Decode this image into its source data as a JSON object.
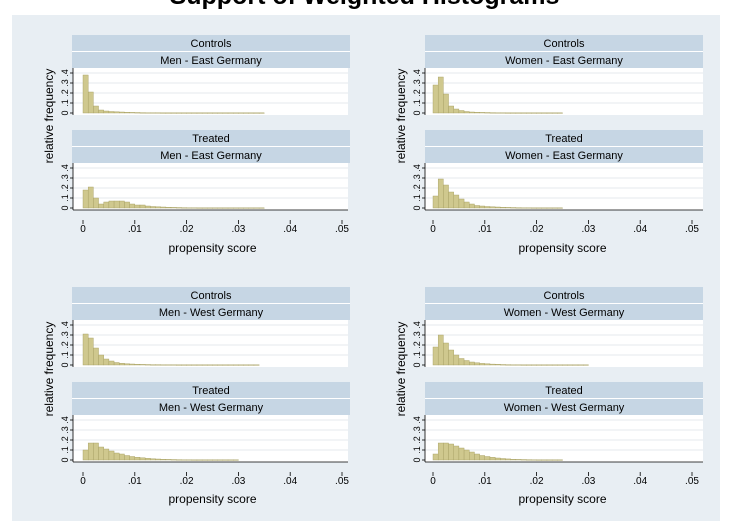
{
  "title": "Support of Weighted Histograms",
  "common": {
    "xlabel": "propensity score",
    "ylabel": "relative frequency",
    "xticks": [
      "0",
      ".01",
      ".02",
      ".03",
      ".04",
      ".05"
    ],
    "yticks": [
      "0",
      ".1",
      ".2",
      ".3",
      ".4"
    ],
    "colors": {
      "bar_fill": "#cfc88e",
      "bar_stroke": "#a39c5f",
      "strip_bg": "#c6d6e4",
      "outer_bg": "#e8eef3",
      "plot_bg": "#ffffff"
    }
  },
  "chart_data": [
    {
      "type": "bar",
      "group": "Men - East Germany",
      "xlabel": "propensity score",
      "ylabel": "relative frequency",
      "xlim": [
        0,
        0.05
      ],
      "ylim": [
        0,
        0.4
      ],
      "bin_width": 0.001,
      "panels": [
        {
          "strip": [
            "Controls",
            "Men - East Germany"
          ],
          "values": [
            0.38,
            0.21,
            0.07,
            0.03,
            0.02,
            0.015,
            0.012,
            0.01,
            0.008,
            0.006,
            0.005,
            0.004,
            0.003,
            0.003,
            0.003,
            0.002,
            0.002,
            0.002,
            0.002,
            0.002,
            0.002,
            0.002,
            0.002,
            0.002,
            0.002,
            0.002,
            0.002,
            0.002,
            0.002,
            0.002,
            0.002,
            0.002,
            0.002,
            0.002,
            0.002
          ]
        },
        {
          "strip": [
            "Treated",
            "Men - East Germany"
          ],
          "values": [
            0.18,
            0.21,
            0.1,
            0.04,
            0.06,
            0.07,
            0.07,
            0.07,
            0.06,
            0.04,
            0.03,
            0.03,
            0.02,
            0.015,
            0.012,
            0.01,
            0.008,
            0.006,
            0.005,
            0.004,
            0.003,
            0.003,
            0.002,
            0.002,
            0.002,
            0.002,
            0.002,
            0.002,
            0.002,
            0.002,
            0.002,
            0.002,
            0.002,
            0.002,
            0.002
          ]
        }
      ]
    },
    {
      "type": "bar",
      "group": "Women - East Germany",
      "xlabel": "propensity score",
      "ylabel": "relative frequency",
      "xlim": [
        0,
        0.05
      ],
      "ylim": [
        0,
        0.4
      ],
      "bin_width": 0.001,
      "panels": [
        {
          "strip": [
            "Controls",
            "Women - East Germany"
          ],
          "values": [
            0.28,
            0.36,
            0.19,
            0.07,
            0.04,
            0.025,
            0.015,
            0.01,
            0.008,
            0.006,
            0.005,
            0.004,
            0.003,
            0.003,
            0.002,
            0.002,
            0.002,
            0.002,
            0.002,
            0.002,
            0.002,
            0.002,
            0.002,
            0.002,
            0.002
          ]
        },
        {
          "strip": [
            "Treated",
            "Women - East Germany"
          ],
          "values": [
            0.12,
            0.29,
            0.23,
            0.16,
            0.13,
            0.09,
            0.06,
            0.04,
            0.025,
            0.02,
            0.015,
            0.012,
            0.01,
            0.008,
            0.006,
            0.005,
            0.004,
            0.003,
            0.003,
            0.002,
            0.002,
            0.002,
            0.002,
            0.002,
            0.002
          ]
        }
      ]
    },
    {
      "type": "bar",
      "group": "Men - West Germany",
      "xlabel": "propensity score",
      "ylabel": "relative frequency",
      "xlim": [
        0,
        0.05
      ],
      "ylim": [
        0,
        0.4
      ],
      "bin_width": 0.001,
      "panels": [
        {
          "strip": [
            "Controls",
            "Men - West Germany"
          ],
          "values": [
            0.31,
            0.27,
            0.17,
            0.1,
            0.06,
            0.04,
            0.025,
            0.018,
            0.013,
            0.01,
            0.008,
            0.006,
            0.005,
            0.004,
            0.004,
            0.003,
            0.003,
            0.003,
            0.002,
            0.002,
            0.002,
            0.002,
            0.002,
            0.002,
            0.002,
            0.002,
            0.002,
            0.002,
            0.002,
            0.002,
            0.002,
            0.002,
            0.002,
            0.002
          ]
        },
        {
          "strip": [
            "Treated",
            "Men - West Germany"
          ],
          "values": [
            0.1,
            0.17,
            0.17,
            0.13,
            0.11,
            0.09,
            0.07,
            0.06,
            0.045,
            0.035,
            0.028,
            0.022,
            0.017,
            0.013,
            0.01,
            0.008,
            0.006,
            0.005,
            0.004,
            0.003,
            0.003,
            0.002,
            0.002,
            0.002,
            0.002,
            0.002,
            0.002,
            0.002,
            0.002,
            0.002
          ]
        }
      ]
    },
    {
      "type": "bar",
      "group": "Women - West Germany",
      "xlabel": "propensity score",
      "ylabel": "relative frequency",
      "xlim": [
        0,
        0.05
      ],
      "ylim": [
        0,
        0.4
      ],
      "bin_width": 0.001,
      "panels": [
        {
          "strip": [
            "Controls",
            "Women - West Germany"
          ],
          "values": [
            0.18,
            0.3,
            0.22,
            0.15,
            0.1,
            0.065,
            0.045,
            0.03,
            0.022,
            0.016,
            0.012,
            0.009,
            0.007,
            0.005,
            0.004,
            0.003,
            0.003,
            0.002,
            0.002,
            0.002,
            0.002,
            0.002,
            0.002,
            0.002,
            0.002,
            0.002,
            0.002,
            0.002,
            0.002,
            0.002
          ]
        },
        {
          "strip": [
            "Treated",
            "Women - West Germany"
          ],
          "values": [
            0.06,
            0.17,
            0.17,
            0.16,
            0.14,
            0.12,
            0.1,
            0.08,
            0.06,
            0.045,
            0.035,
            0.027,
            0.02,
            0.015,
            0.011,
            0.008,
            0.006,
            0.005,
            0.004,
            0.003,
            0.002,
            0.002,
            0.002,
            0.002,
            0.002
          ]
        }
      ]
    }
  ]
}
